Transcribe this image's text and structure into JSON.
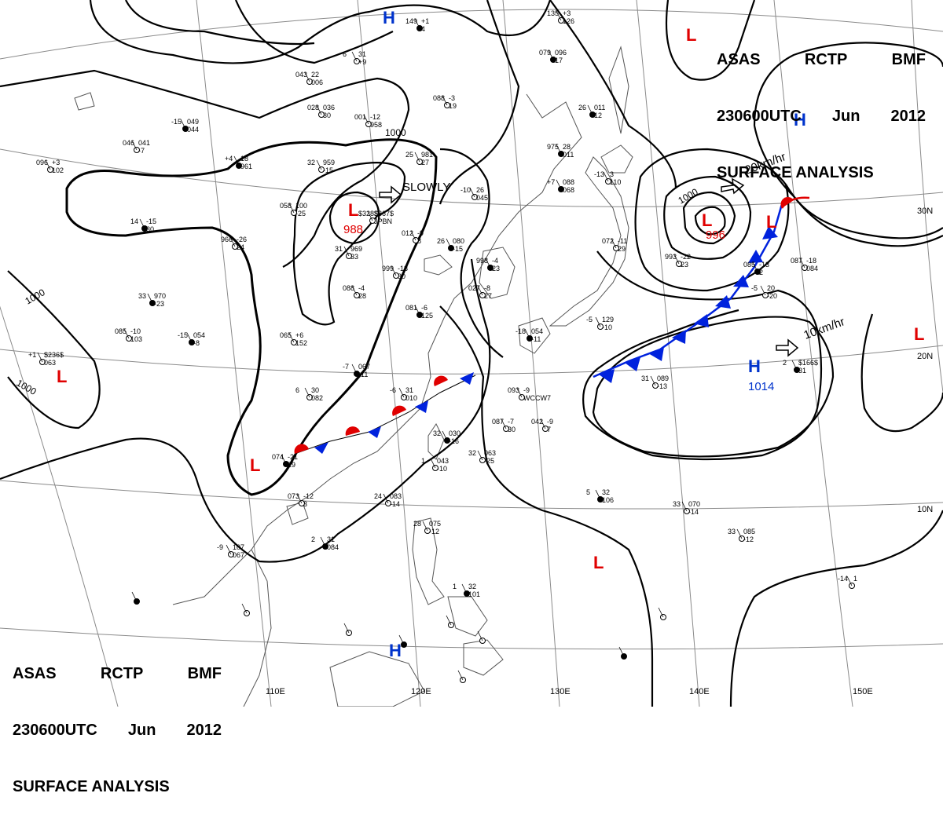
{
  "header": {
    "line1": [
      "ASAS",
      "RCTP",
      "BMF"
    ],
    "line2": [
      "230600UTC",
      "Jun",
      "2012"
    ],
    "line3": "SURFACE ANALYSIS"
  },
  "colors": {
    "low": "#e00000",
    "high": "#0033cc",
    "cold_front": "#0022dd",
    "warm_front": "#e00000",
    "isobar": "#000000",
    "grid": "#888888",
    "coast": "#555555"
  },
  "longitude_labels": [
    "110E",
    "120E",
    "130E",
    "140E",
    "150E"
  ],
  "latitude_labels": [
    "30N",
    "20N",
    "10N"
  ],
  "pressure_centers": [
    {
      "type": "H",
      "value": ""
    },
    {
      "type": "H",
      "value": ""
    },
    {
      "type": "H",
      "value": "1014"
    },
    {
      "type": "H",
      "value": ""
    },
    {
      "type": "L",
      "value": "988"
    },
    {
      "type": "L",
      "value": "996"
    },
    {
      "type": "L",
      "value": ""
    },
    {
      "type": "L",
      "value": ""
    },
    {
      "type": "L",
      "value": ""
    },
    {
      "type": "L",
      "value": ""
    },
    {
      "type": "L",
      "value": ""
    },
    {
      "type": "L",
      "value": ""
    }
  ],
  "isobar_labels": [
    "1000",
    "1000",
    "1000",
    "1000"
  ],
  "movement_labels": [
    "SLOWLY",
    "20km/hr",
    "10km/hr"
  ],
  "station_labels": [
    "149",
    "+1",
    "4",
    "135",
    "+3",
    "126",
    "6",
    "31",
    "+9",
    "079",
    "096",
    "17",
    "043",
    "22",
    "006",
    "028",
    "036",
    "30",
    "26",
    "011",
    "12",
    "088",
    "-3",
    "19",
    "001",
    "-12",
    "958",
    "-15",
    "049",
    "044",
    "046",
    "041",
    "-7",
    "096",
    "+3",
    "102",
    "+4",
    "18",
    "961",
    "32",
    "959",
    "-15",
    "25",
    "981",
    "27",
    "975",
    "28",
    "011",
    "-10",
    "26",
    "045",
    "-13",
    "3",
    "110",
    "+7",
    "088",
    "068",
    "058",
    "100",
    "-25",
    "$328$",
    "$367$",
    "JPBN",
    "14",
    "-15",
    "30",
    "966",
    "-26",
    "24",
    "012",
    "-9",
    "8",
    "26",
    "080",
    "-15",
    "072",
    "-11",
    "29",
    "993",
    "-22",
    "23",
    "085",
    "-13",
    "2",
    "087",
    "-18",
    "084",
    "-5",
    "20",
    "-20",
    "33",
    "970",
    "-23",
    "31",
    "969",
    "33",
    "999",
    "-18",
    "30",
    "998",
    "-4",
    "23",
    "027",
    "-8",
    "27",
    "088",
    "-4",
    "28",
    "081",
    "-6",
    "125",
    "-5",
    "129",
    "-10",
    "085",
    "-10",
    "103",
    "-15",
    "054",
    "-8",
    "065",
    "+6",
    "152",
    "+1",
    "$236$",
    "063",
    "-7",
    "067",
    "-11",
    "6",
    "30",
    "082",
    "-6",
    "31",
    "010",
    "-18",
    "054",
    "-11",
    "093",
    "-9",
    "WCCW7",
    "31",
    "089",
    "-13",
    "2",
    "$166$",
    "31",
    "087",
    "-7",
    "30",
    "042",
    "-9",
    "7",
    "32",
    "030",
    "-16",
    "32",
    "063",
    "-25",
    "1",
    "043",
    "-10",
    "074",
    "-21",
    "29",
    "073",
    "-12",
    "3",
    "24",
    "083",
    "-14",
    "5",
    "32",
    "106",
    "33",
    "070",
    "-14",
    "33",
    "085",
    "-12",
    "2",
    "31",
    "084",
    "-9",
    "107",
    "067",
    "28",
    "075",
    "-12",
    "1",
    "32",
    "101",
    "-14",
    "1"
  ]
}
